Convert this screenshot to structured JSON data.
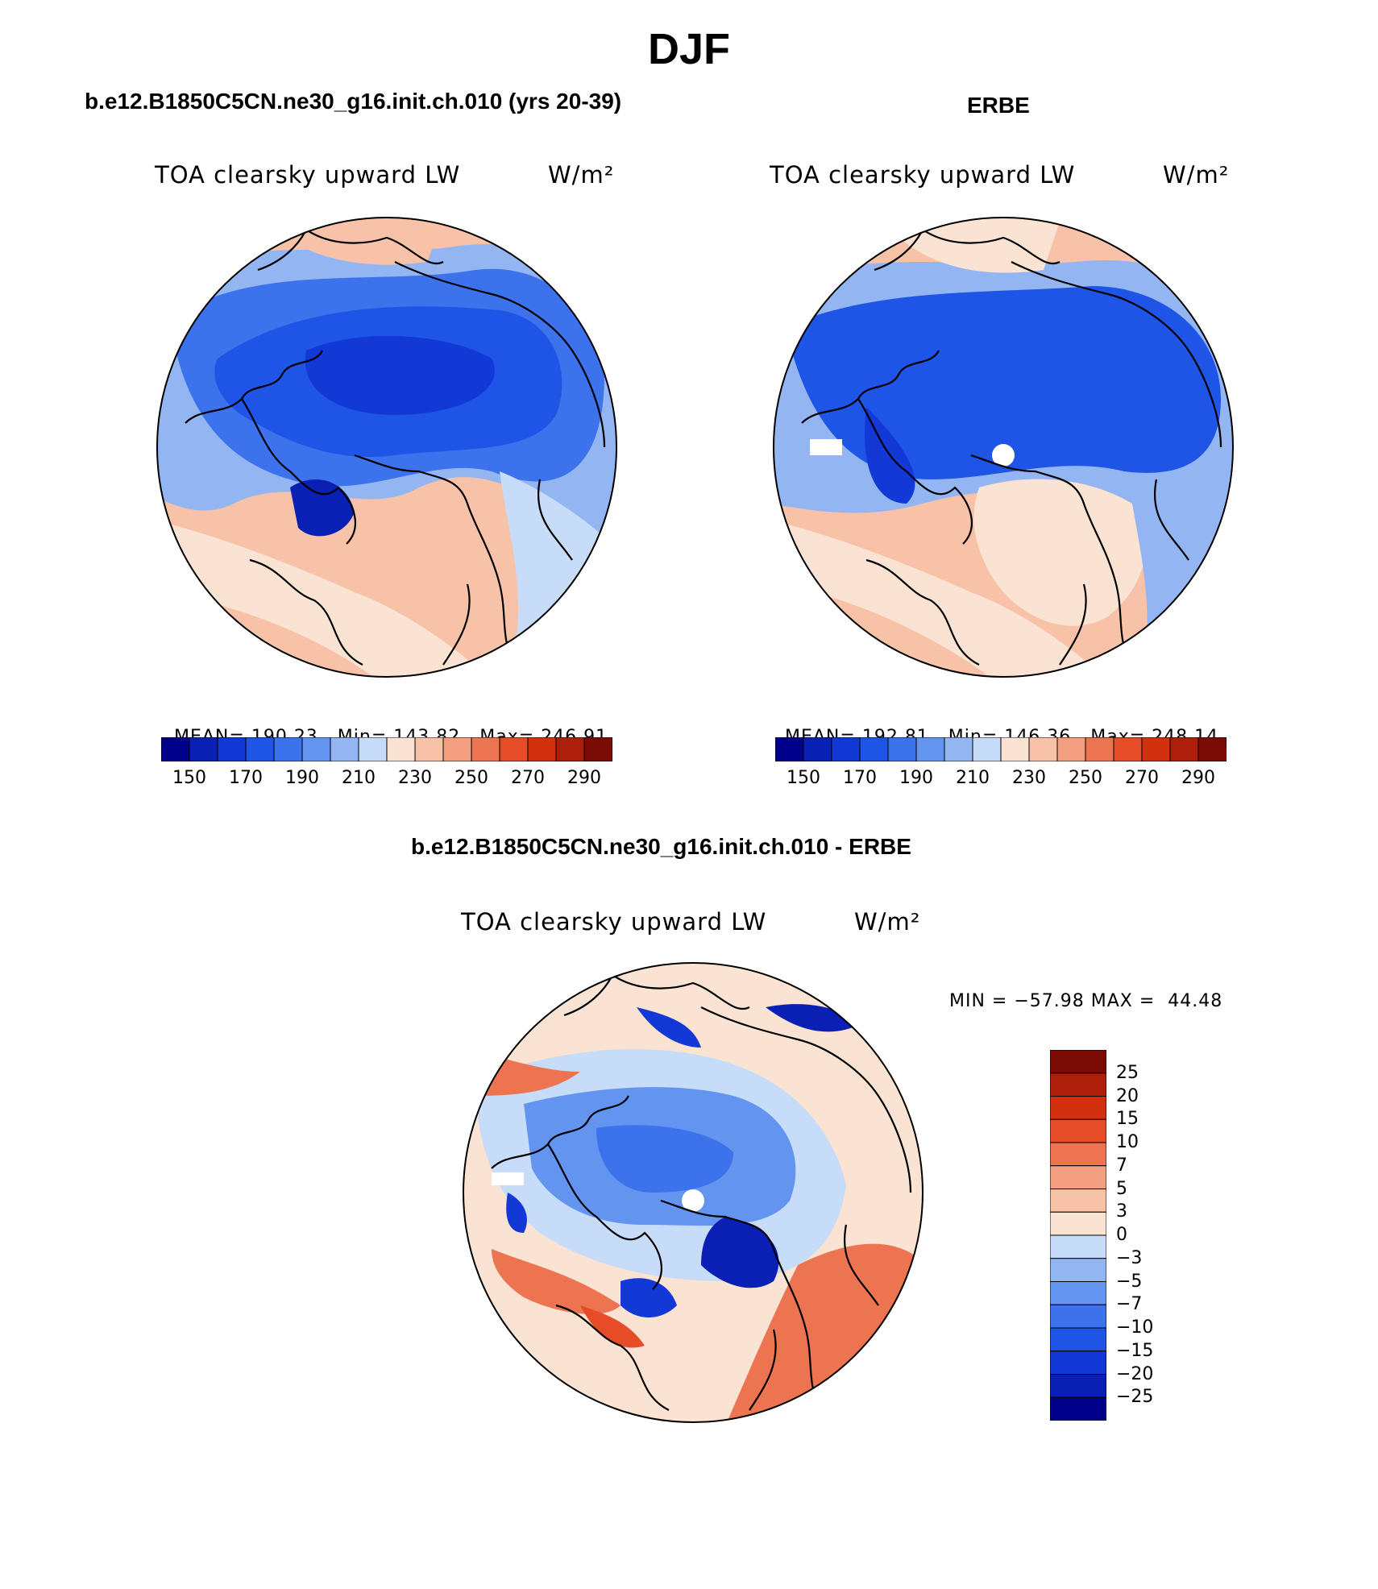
{
  "page": {
    "title": "DJF"
  },
  "panels": {
    "model": {
      "case_title": "b.e12.B1850C5CN.ne30_g16.init.ch.010 (yrs 20-39)",
      "variable": "TOA clearsky upward LW",
      "units": "W/m²",
      "stats": {
        "mean_label": "MEAN=",
        "mean": "190.23",
        "min_label": "Min=",
        "min": "143.82",
        "max_label": "Max=",
        "max": "246.91"
      }
    },
    "obs": {
      "case_title": "ERBE",
      "variable": "TOA clearsky upward LW",
      "units": "W/m²",
      "stats": {
        "mean_label": "MEAN=",
        "mean": "192.81",
        "min_label": "Min=",
        "min": "146.36",
        "max_label": "Max=",
        "max": "248.14"
      }
    },
    "diff": {
      "case_title": "b.e12.B1850C5CN.ne30_g16.init.ch.010 - ERBE",
      "variable": "TOA clearsky upward LW",
      "units": "W/m²",
      "stats_line": "MIN = −57.98 MAX =  44.48"
    }
  },
  "colorbars": {
    "absolute": {
      "colors": [
        "#00008b",
        "#0a1fb4",
        "#1238d6",
        "#1f55e6",
        "#3c72ec",
        "#6394f0",
        "#93b6f3",
        "#c6dcf8",
        "#fbe3d3",
        "#f7c2a8",
        "#f29e7f",
        "#ec7450",
        "#e74c28",
        "#d3300f",
        "#ad1f0b",
        "#7a0b05"
      ],
      "ticks": [
        "150",
        "170",
        "190",
        "210",
        "230",
        "250",
        "270",
        "290"
      ]
    },
    "difference": {
      "colors": [
        "#00008b",
        "#0a1fb4",
        "#1238d6",
        "#1f55e6",
        "#3c72ec",
        "#6394f0",
        "#93b6f3",
        "#c6dcf8",
        "#fbe3d3",
        "#f7c2a8",
        "#f29e7f",
        "#ec7450",
        "#e74c28",
        "#d3300f",
        "#ad1f0b",
        "#7a0b05"
      ],
      "ticks": [
        "25",
        "20",
        "15",
        "10",
        "7",
        "5",
        "3",
        "0",
        "−3",
        "−5",
        "−7",
        "−10",
        "−15",
        "−20",
        "−25"
      ]
    }
  },
  "field_colors": {
    "ocean_warm": "#f29e7f",
    "ocean_mild": "#fbe3d3",
    "cold_core": "#1238d6",
    "deep_cold": "#0a1fb4",
    "coast_line": "#000000",
    "missing_pole": "#ffffff"
  }
}
